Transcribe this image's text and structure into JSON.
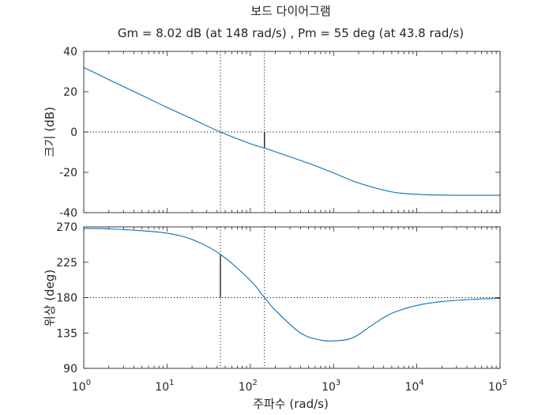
{
  "chart_data": {
    "type": "line",
    "title": "보드 다이어그램",
    "subtitle": "Gm = 8.02 dB (at 148 rad/s) ,  Pm = 55 deg (at 43.8 rad/s)",
    "xlabel": "주파수  (rad/s)",
    "xscale": "log",
    "xlim": [
      1,
      100000
    ],
    "x_tick_labels": [
      "10^0",
      "10^1",
      "10^2",
      "10^3",
      "10^4",
      "10^5"
    ],
    "grid": false,
    "gain_crossover_freq": 43.8,
    "phase_crossover_freq": 148,
    "gain_margin_db": 8.02,
    "phase_margin_deg": 55,
    "magnitude": {
      "ylabel": "크기 (dB)",
      "ylim": [
        -40,
        40
      ],
      "y_ticks": [
        -40,
        -20,
        0,
        20,
        40
      ],
      "series": [
        {
          "x": [
            1,
            2,
            5,
            10,
            20,
            43.8,
            100,
            148,
            200,
            500,
            1000,
            2000,
            5000,
            10000,
            20000,
            50000,
            100000
          ],
          "y": [
            32,
            26,
            18.2,
            12.2,
            6.5,
            0,
            -5.8,
            -8,
            -9.8,
            -15.5,
            -20.3,
            -25.3,
            -29.7,
            -30.9,
            -31.3,
            -31.4,
            -31.4
          ]
        }
      ],
      "reference_line": 0,
      "margin_marker": {
        "x": 148,
        "y_from": 0,
        "y_to": -8.02
      }
    },
    "phase": {
      "ylabel": "위상 (deg)",
      "ylim": [
        90,
        270
      ],
      "y_ticks": [
        90,
        135,
        180,
        225,
        270
      ],
      "series": [
        {
          "x": [
            1,
            2,
            5,
            10,
            20,
            43.8,
            100,
            148,
            200,
            400,
            700,
            1000,
            1500,
            2000,
            3000,
            5000,
            10000,
            20000,
            50000,
            100000
          ],
          "y": [
            268,
            267.5,
            265,
            262,
            254,
            235,
            202,
            180,
            164,
            135,
            126,
            125,
            127,
            133,
            146,
            160,
            170,
            175,
            178,
            179
          ]
        }
      ],
      "reference_line": 180,
      "margin_marker": {
        "x": 43.8,
        "y_from": 180,
        "y_to": 235
      }
    },
    "colors": {
      "line": "#0072bd",
      "axes": "#262626",
      "reference": "#000000"
    }
  }
}
